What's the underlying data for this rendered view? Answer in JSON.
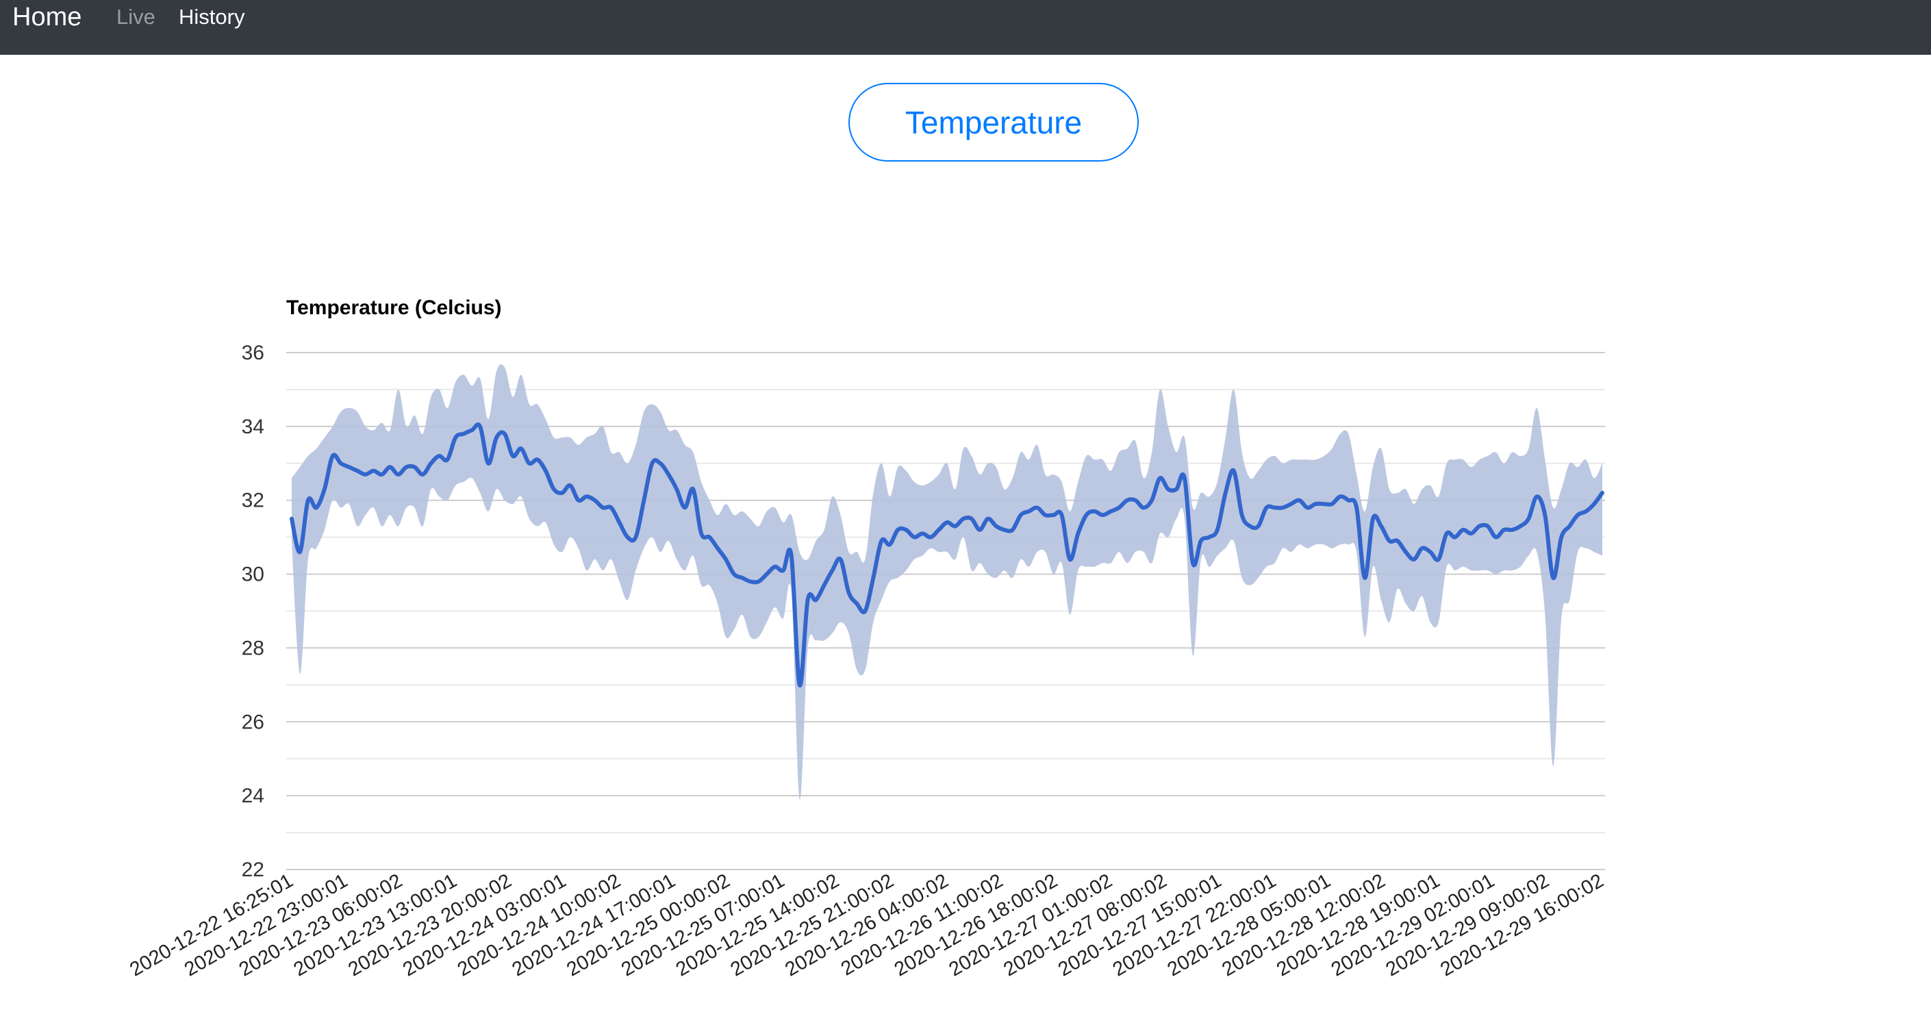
{
  "nav": {
    "brand": "Home",
    "links": [
      {
        "label": "Live",
        "active": false
      },
      {
        "label": "History",
        "active": true
      }
    ]
  },
  "header_button": {
    "label": "Temperature"
  },
  "colors": {
    "navbar_bg": "#343a40",
    "accent": "#007bff",
    "series_line": "#3366cc",
    "band_fill": "#b5c2de"
  },
  "chart_data": {
    "type": "line",
    "title": "Temperature (Celcius)",
    "xlabel": "",
    "ylabel": "",
    "ylim": [
      22,
      36
    ],
    "yticks": [
      22,
      24,
      26,
      28,
      30,
      32,
      34,
      36
    ],
    "grid": true,
    "x_tick_labels": [
      "2020-12-22 16:25:01",
      "2020-12-22 23:00:01",
      "2020-12-23 06:00:02",
      "2020-12-23 13:00:01",
      "2020-12-23 20:00:02",
      "2020-12-24 03:00:01",
      "2020-12-24 10:00:02",
      "2020-12-24 17:00:01",
      "2020-12-25 00:00:02",
      "2020-12-25 07:00:01",
      "2020-12-25 14:00:02",
      "2020-12-25 21:00:02",
      "2020-12-26 04:00:02",
      "2020-12-26 11:00:02",
      "2020-12-26 18:00:02",
      "2020-12-27 01:00:02",
      "2020-12-27 08:00:02",
      "2020-12-27 15:00:01",
      "2020-12-27 22:00:01",
      "2020-12-28 05:00:01",
      "2020-12-28 12:00:02",
      "2020-12-28 19:00:01",
      "2020-12-29 02:00:01",
      "2020-12-29 09:00:02",
      "2020-12-29 16:00:02"
    ],
    "series": [
      {
        "role": "mean",
        "values": [
          31.5,
          30.6,
          32.0,
          31.8,
          32.3,
          33.2,
          33.0,
          32.9,
          32.8,
          32.7,
          32.8,
          32.7,
          32.9,
          32.7,
          32.9,
          32.9,
          32.7,
          33.0,
          33.2,
          33.1,
          33.7,
          33.8,
          33.9,
          34.0,
          33.0,
          33.7,
          33.8,
          33.2,
          33.4,
          33.0,
          33.1,
          32.8,
          32.3,
          32.2,
          32.4,
          32.0,
          32.1,
          32.0,
          31.8,
          31.8,
          31.4,
          31.0,
          31.0,
          32.0,
          33.0,
          33.0,
          32.7,
          32.3,
          31.8,
          32.3,
          31.1,
          31.0,
          30.7,
          30.4,
          30.0,
          29.9,
          29.8,
          29.8,
          30.0,
          30.2,
          30.1,
          30.5,
          27.0,
          29.3,
          29.3,
          29.7,
          30.1,
          30.4,
          29.5,
          29.2,
          29.0,
          29.9,
          30.9,
          30.8,
          31.2,
          31.2,
          31.0,
          31.1,
          31.0,
          31.2,
          31.4,
          31.3,
          31.5,
          31.5,
          31.2,
          31.5,
          31.3,
          31.2,
          31.2,
          31.6,
          31.7,
          31.8,
          31.6,
          31.6,
          31.6,
          30.4,
          31.1,
          31.6,
          31.7,
          31.6,
          31.7,
          31.8,
          32.0,
          32.0,
          31.8,
          32.0,
          32.6,
          32.3,
          32.3,
          32.6,
          30.3,
          30.9,
          31.0,
          31.2,
          32.2,
          32.8,
          31.6,
          31.3,
          31.3,
          31.8,
          31.8,
          31.8,
          31.9,
          32.0,
          31.8,
          31.9,
          31.9,
          31.9,
          32.1,
          32.0,
          31.8,
          29.9,
          31.5,
          31.3,
          30.9,
          30.9,
          30.6,
          30.4,
          30.7,
          30.6,
          30.4,
          31.1,
          31.0,
          31.2,
          31.1,
          31.3,
          31.3,
          31.0,
          31.2,
          31.2,
          31.3,
          31.5,
          32.1,
          31.6,
          29.9,
          31.0,
          31.3,
          31.6,
          31.7,
          31.9,
          32.2
        ]
      },
      {
        "role": "max",
        "values": [
          32.6,
          32.9,
          33.2,
          33.4,
          33.7,
          34.0,
          34.4,
          34.5,
          34.4,
          34.0,
          33.9,
          34.1,
          33.9,
          35.0,
          34.0,
          34.3,
          33.8,
          34.8,
          35.0,
          34.5,
          35.2,
          35.4,
          35.1,
          35.3,
          34.2,
          35.5,
          35.6,
          34.8,
          35.4,
          34.6,
          34.6,
          34.2,
          33.7,
          33.7,
          33.7,
          33.5,
          33.7,
          33.8,
          34.0,
          33.3,
          33.3,
          33.0,
          33.5,
          34.4,
          34.6,
          34.4,
          33.9,
          33.9,
          33.5,
          33.3,
          32.5,
          32.0,
          31.6,
          31.9,
          31.6,
          31.7,
          31.5,
          31.3,
          31.7,
          31.8,
          31.4,
          31.6,
          30.6,
          30.4,
          30.9,
          31.2,
          32.1,
          31.6,
          30.6,
          30.6,
          30.4,
          32.2,
          33.0,
          32.1,
          32.9,
          32.8,
          32.5,
          32.4,
          32.5,
          32.7,
          33.0,
          32.3,
          33.4,
          33.2,
          32.7,
          33.0,
          32.9,
          32.3,
          32.6,
          33.3,
          33.1,
          33.5,
          32.7,
          32.7,
          32.5,
          31.7,
          32.5,
          33.2,
          33.1,
          33.1,
          32.8,
          33.3,
          33.4,
          33.6,
          32.6,
          33.3,
          35.0,
          34.0,
          33.3,
          33.7,
          31.8,
          32.2,
          32.1,
          32.5,
          33.7,
          35.0,
          33.3,
          32.6,
          32.8,
          33.1,
          33.2,
          33.0,
          33.1,
          33.1,
          33.1,
          33.1,
          33.2,
          33.4,
          33.8,
          33.8,
          32.7,
          31.7,
          32.9,
          33.4,
          32.3,
          32.2,
          32.3,
          31.9,
          32.3,
          32.4,
          32.1,
          33.0,
          33.1,
          33.1,
          32.9,
          33.1,
          33.2,
          33.3,
          33.0,
          33.3,
          33.2,
          33.4,
          34.5,
          33.1,
          31.8,
          32.3,
          33.0,
          32.9,
          33.1,
          32.6,
          33.0
        ]
      },
      {
        "role": "min",
        "values": [
          30.9,
          27.3,
          30.4,
          30.7,
          31.2,
          32.0,
          31.8,
          31.9,
          31.3,
          31.6,
          31.8,
          31.3,
          31.6,
          31.3,
          31.8,
          31.8,
          31.3,
          32.3,
          32.1,
          32.0,
          32.4,
          32.5,
          32.6,
          32.2,
          31.7,
          32.3,
          32.0,
          31.9,
          32.1,
          31.5,
          31.3,
          31.4,
          30.8,
          30.6,
          31.0,
          30.7,
          30.1,
          30.4,
          30.1,
          30.4,
          29.8,
          29.3,
          30.1,
          30.7,
          31.0,
          30.6,
          30.9,
          30.4,
          30.1,
          30.5,
          29.7,
          29.7,
          29.2,
          28.3,
          28.5,
          28.9,
          28.3,
          28.3,
          28.7,
          29.1,
          28.8,
          29.5,
          23.9,
          28.0,
          28.2,
          28.2,
          28.4,
          28.7,
          28.4,
          27.4,
          27.4,
          28.7,
          29.3,
          29.8,
          29.9,
          30.1,
          30.4,
          30.5,
          30.7,
          30.6,
          30.6,
          30.4,
          31.0,
          30.1,
          30.3,
          30.0,
          29.9,
          30.1,
          29.9,
          30.4,
          30.2,
          30.6,
          30.6,
          30.0,
          30.3,
          28.9,
          30.1,
          30.2,
          30.2,
          30.3,
          30.3,
          30.6,
          30.3,
          30.6,
          30.6,
          30.3,
          31.1,
          31.0,
          31.5,
          31.5,
          27.8,
          30.4,
          30.2,
          30.5,
          30.7,
          30.9,
          29.9,
          29.7,
          29.9,
          30.2,
          30.3,
          30.7,
          30.6,
          30.8,
          30.7,
          30.8,
          30.8,
          30.7,
          30.8,
          30.8,
          30.6,
          28.3,
          30.2,
          29.3,
          28.7,
          29.6,
          29.2,
          29.0,
          29.4,
          28.7,
          28.7,
          30.2,
          30.1,
          30.2,
          30.1,
          30.1,
          30.1,
          30.0,
          30.1,
          30.1,
          30.2,
          30.5,
          30.6,
          28.9,
          24.8,
          28.8,
          29.3,
          30.6,
          30.7,
          30.6,
          30.5
        ]
      }
    ]
  }
}
